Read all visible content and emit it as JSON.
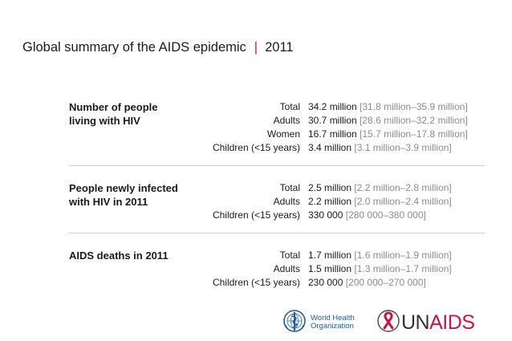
{
  "title": {
    "main": "Global summary of the AIDS epidemic",
    "separator": "|",
    "year": "2011"
  },
  "sections": [
    {
      "title_line1": "Number of people",
      "title_line2": "living with HIV",
      "rows": [
        {
          "label": "Total",
          "value": "34.2 million",
          "range": "[31.8 million–35.9 million]"
        },
        {
          "label": "Adults",
          "value": "30.7 million",
          "range": "[28.6 million–32.2 million]"
        },
        {
          "label": "Women",
          "value": "16.7 million",
          "range": "[15.7 million–17.8 million]"
        },
        {
          "label": "Children (<15 years)",
          "value": "3.4 million",
          "range": "[3.1 million–3.9 million]"
        }
      ]
    },
    {
      "title_line1": "People newly infected",
      "title_line2": "with HIV in 2011",
      "rows": [
        {
          "label": "Total",
          "value": "2.5 million",
          "range": "[2.2 million–2.8 million]"
        },
        {
          "label": "Adults",
          "value": "2.2 million",
          "range": "[2.0 million–2.4 million]"
        },
        {
          "label": "Children (<15 years)",
          "value": "330 000",
          "range": "[280 000–380 000]"
        }
      ]
    },
    {
      "title_line1": "AIDS deaths in 2011",
      "title_line2": "",
      "rows": [
        {
          "label": "Total",
          "value": "1.7 million",
          "range": "[1.6 million–1.9 million]"
        },
        {
          "label": "Adults",
          "value": "1.5 million",
          "range": "[1.3 million–1.7 million]"
        },
        {
          "label": "Children (<15 years)",
          "value": "230 000",
          "range": "[200 000–270 000]"
        }
      ]
    }
  ],
  "logos": {
    "who_line1": "World Health",
    "who_line2": "Organization",
    "unaids_un": "UN",
    "unaids_aids": "AIDS",
    "who_icon": "who-emblem-icon",
    "unaids_icon": "red-ribbon-icon"
  },
  "colors": {
    "accent": "#d31145",
    "range_gray": "#8c8c8c",
    "who_blue": "#1b5ea8",
    "divider": "#cfcfcf"
  }
}
